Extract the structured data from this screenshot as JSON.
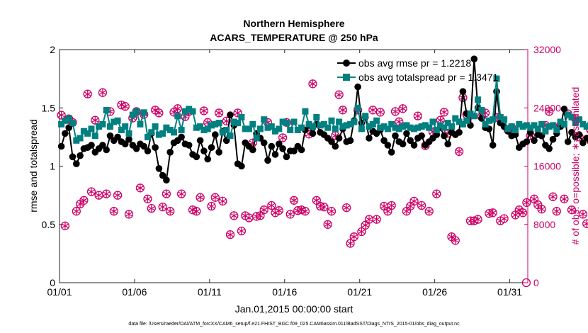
{
  "chart_data": {
    "type": "line",
    "title": "Northern Hemisphere",
    "subtitle": "ACARS_TEMPERATURE @ 250 hPa",
    "xlabel": "Jan.01,2015 00:00:00 start",
    "ylabel_left": "rmse and totalspread",
    "ylabel_right": "# of obs: o=possible; ∗=assimilated",
    "footer": "data file: /Users/raeder/DAI/ATM_forcXX/CAM6_setup/f.e21.FHIST_BGC.f09_025.CAM6assim.011/BadSST/Diags_NTrS_2015-01/obs_diag_output.nc",
    "xlim": [
      1,
      32.2
    ],
    "ylim_left": [
      0,
      2
    ],
    "ylim_right": [
      0,
      32000
    ],
    "xticks": [
      1,
      6,
      11,
      16,
      21,
      26,
      31
    ],
    "xtick_labels": [
      "01/01",
      "01/06",
      "01/11",
      "01/16",
      "01/21",
      "01/26",
      "01/31"
    ],
    "yticks_left": [
      0,
      0.5,
      1,
      1.5,
      2
    ],
    "ytick_labels_left": [
      "0",
      "0.5",
      "1",
      "1.5",
      "2"
    ],
    "yticks_right": [
      0,
      8000,
      16000,
      24000,
      32000
    ],
    "ytick_labels_right": [
      "0",
      "8000",
      "16000",
      "24000",
      "32000"
    ],
    "x_start": 1.125,
    "x_step": 0.25,
    "series": [
      {
        "name": "obs avg rmse",
        "legend": "obs avg rmse pr = 1.2218",
        "axis": "left",
        "color": "#000000",
        "marker": "circle",
        "values": [
          1.17,
          1.28,
          1.33,
          1.08,
          1.02,
          1.09,
          1.15,
          1.16,
          1.18,
          1.12,
          1.15,
          1.18,
          1.14,
          1.26,
          1.22,
          1.25,
          1.21,
          1.19,
          1.23,
          1.18,
          1.15,
          1.19,
          1.17,
          1.13,
          1.28,
          1.16,
          0.98,
          0.92,
          0.88,
          1.12,
          1.2,
          1.22,
          1.25,
          1.19,
          1.18,
          1.1,
          1.08,
          1.22,
          1.13,
          1.06,
          1.16,
          1.27,
          1.12,
          1.3,
          1.22,
          1.44,
          1.35,
          1.02,
          1.0,
          1.2,
          1.17,
          1.14,
          1.28,
          1.24,
          1.2,
          1.05,
          1.17,
          1.1,
          1.19,
          1.15,
          1.08,
          1.13,
          1.13,
          1.17,
          1.14,
          1.31,
          1.35,
          1.28,
          1.36,
          1.29,
          1.27,
          1.24,
          1.21,
          1.17,
          1.24,
          1.32,
          1.21,
          1.22,
          1.39,
          1.68,
          1.37,
          1.42,
          1.24,
          1.3,
          1.28,
          1.31,
          1.22,
          1.18,
          1.12,
          1.26,
          1.21,
          1.19,
          1.28,
          1.22,
          1.18,
          1.24,
          1.26,
          1.18,
          1.21,
          1.24,
          1.27,
          1.33,
          1.26,
          1.19,
          1.29,
          1.27,
          1.29,
          1.64,
          1.45,
          1.35,
          1.92,
          1.5,
          1.41,
          1.33,
          1.32,
          1.18,
          1.64,
          1.37,
          1.34,
          1.3,
          1.26,
          1.27,
          1.16,
          1.19,
          1.21,
          1.29,
          1.22,
          1.27,
          1.26,
          1.18,
          1.15,
          1.23,
          1.28,
          1.34,
          1.49,
          1.21,
          1.29,
          1.25,
          1.27,
          1.2,
          1.24,
          1.21,
          1.3,
          1.25,
          1.36,
          1.16
        ]
      },
      {
        "name": "obs avg totalspread",
        "legend": "obs avg totalspread pr = 1.3471",
        "axis": "left",
        "color": "#008080",
        "marker": "square",
        "values": [
          1.36,
          1.39,
          1.41,
          1.37,
          1.22,
          1.24,
          1.3,
          1.28,
          1.32,
          1.26,
          1.34,
          1.36,
          1.48,
          1.34,
          1.38,
          1.39,
          1.31,
          1.34,
          1.28,
          1.44,
          1.47,
          1.36,
          1.46,
          1.25,
          1.29,
          1.34,
          1.27,
          1.28,
          1.33,
          1.31,
          1.29,
          1.43,
          1.31,
          1.47,
          1.49,
          1.47,
          1.33,
          1.34,
          1.31,
          1.32,
          1.35,
          1.36,
          1.37,
          1.29,
          1.31,
          1.26,
          1.38,
          1.37,
          1.42,
          1.32,
          1.32,
          1.36,
          1.24,
          1.32,
          1.4,
          1.33,
          1.34,
          1.3,
          1.32,
          1.38,
          1.37,
          1.31,
          1.38,
          1.31,
          1.33,
          1.47,
          1.36,
          1.34,
          1.42,
          1.35,
          1.36,
          1.33,
          1.39,
          1.32,
          1.38,
          1.34,
          1.35,
          1.36,
          1.38,
          1.5,
          1.32,
          1.43,
          1.34,
          1.36,
          1.39,
          1.33,
          1.34,
          1.32,
          1.36,
          1.33,
          1.32,
          1.34,
          1.35,
          1.33,
          1.32,
          1.33,
          1.34,
          1.35,
          1.33,
          1.38,
          1.31,
          1.35,
          1.33,
          1.37,
          1.34,
          1.41,
          1.38,
          1.36,
          1.39,
          1.45,
          1.43,
          1.57,
          1.48,
          1.36,
          1.39,
          1.4,
          1.75,
          1.42,
          1.4,
          1.32,
          1.34,
          1.31,
          1.36,
          1.34,
          1.35,
          1.33,
          1.35,
          1.32,
          1.36,
          1.3,
          1.34,
          1.35,
          1.31,
          1.38,
          1.36,
          1.44,
          1.42,
          1.37,
          1.4,
          1.36,
          1.34,
          1.35,
          1.39,
          1.38,
          1.34
        ]
      },
      {
        "name": "obs possible",
        "axis": "right",
        "color": "#cc0066",
        "marker": "circle-open",
        "values": [
          23000,
          7800,
          22500,
          22000,
          9800,
          10800,
          11300,
          25900,
          12500,
          22300,
          12000,
          26100,
          12200,
          23500,
          9800,
          12000,
          24400,
          24200,
          9400,
          22600,
          23500,
          13000,
          23100,
          11500,
          10200,
          23700,
          23300,
          10400,
          12200,
          9800,
          23400,
          23900,
          12200,
          22800,
          23500,
          10000,
          9800,
          11700,
          23600,
          22000,
          10500,
          11700,
          23300,
          11200,
          22200,
          6600,
          9200,
          23300,
          7100,
          9200,
          8900,
          19200,
          9100,
          9200,
          10000,
          22000,
          10600,
          9600,
          9900,
          19900,
          22000,
          9400,
          11300,
          9900,
          10000,
          9800,
          20400,
          27300,
          11300,
          10500,
          10400,
          8000,
          9800,
          20200,
          25800,
          23700,
          10300,
          5400,
          6300,
          23700,
          7000,
          7900,
          8700,
          23700,
          8700,
          23400,
          10500,
          9800,
          10600,
          23500,
          22100,
          23900,
          9800,
          10500,
          11200,
          22900,
          10600,
          18800,
          9800,
          20700,
          12200,
          22300,
          23400,
          20500,
          6300,
          5800,
          18000,
          25400,
          23100,
          8500,
          8500,
          8700,
          22800,
          23300,
          9500,
          9600,
          22700,
          8500,
          8800,
          21000,
          21300,
          9300,
          10000,
          9600,
          11000,
          20200,
          11500,
          10700,
          10100,
          21600,
          23500,
          11800,
          9800,
          21600,
          11500,
          23200,
          10000,
          22500,
          20000,
          9400,
          8100,
          21000,
          4600
        ]
      },
      {
        "name": "obs assimilated",
        "axis": "right",
        "color": "#cc0066",
        "marker": "asterisk",
        "values": [
          23000,
          7800,
          22500,
          22000,
          9800,
          10800,
          11300,
          25900,
          12500,
          22300,
          12000,
          26100,
          12200,
          23500,
          9800,
          12000,
          24400,
          24200,
          9400,
          22600,
          23500,
          13000,
          23100,
          11500,
          10200,
          23700,
          23300,
          10400,
          12200,
          9800,
          23400,
          23900,
          12200,
          22800,
          23500,
          10000,
          9800,
          11700,
          23600,
          22000,
          10500,
          11700,
          23300,
          11200,
          22200,
          6600,
          9200,
          23300,
          7100,
          9200,
          8900,
          19200,
          9100,
          9200,
          10000,
          22000,
          10600,
          9600,
          9900,
          19900,
          22000,
          9400,
          11300,
          9900,
          10000,
          9800,
          20400,
          27300,
          11300,
          10500,
          10400,
          8000,
          9800,
          20200,
          25800,
          23700,
          10300,
          5400,
          6300,
          23700,
          7000,
          7900,
          8700,
          23700,
          8700,
          23400,
          10500,
          9800,
          10600,
          23500,
          22100,
          23900,
          9800,
          10500,
          11200,
          22900,
          10600,
          18800,
          9800,
          20700,
          12200,
          22300,
          23400,
          20500,
          6300,
          5800,
          18000,
          25400,
          23100,
          8500,
          8500,
          8700,
          22800,
          23300,
          9500,
          9600,
          22700,
          8500,
          8800,
          21000,
          21300,
          9300,
          10000,
          9600,
          11000,
          20200,
          11500,
          10700,
          10100,
          21600,
          23500,
          11800,
          9800,
          21600,
          11500,
          23200,
          10000,
          22500,
          20000,
          9400,
          8100,
          21000,
          4600
        ]
      }
    ],
    "trailing_possible_point": {
      "x": 32.1,
      "y": 0
    }
  }
}
